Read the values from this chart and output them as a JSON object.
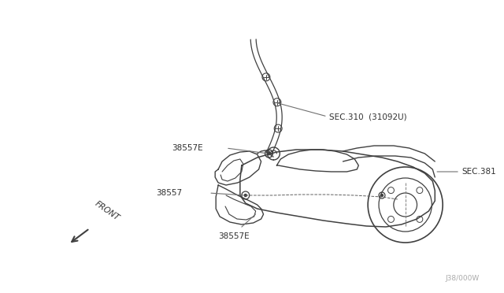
{
  "bg_color": "#ffffff",
  "line_color": "#404040",
  "text_color": "#303030",
  "label_color": "#505050",
  "watermark": "J38/000W",
  "sec310_label": "SEC.310  (31092U)",
  "sec381_label": "SEC.381",
  "label_38557E_top": "38557E",
  "label_38557": "38557",
  "label_38557E_bot": "38557E",
  "front_label": "FRONT"
}
